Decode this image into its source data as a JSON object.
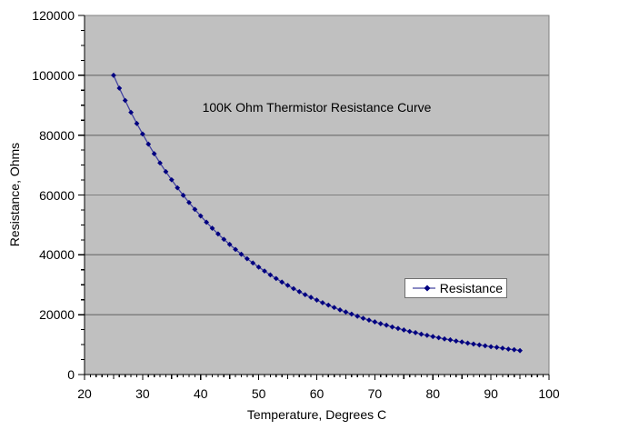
{
  "colors": {
    "background": "#ffffff",
    "plot_bg": "#c0c0c0",
    "plot_border": "#808080",
    "gridline": "#808080",
    "axis": "#000000",
    "text": "#000000",
    "series_marker": "#000080",
    "series_line": "#4444a0",
    "legend_border": "#6e6e6e",
    "legend_bg": "#ffffff"
  },
  "legend": {
    "label": "Resistance"
  },
  "chart_data": {
    "type": "line",
    "title": "100K Ohm Thermistor Resistance Curve",
    "xlabel": "Temperature, Degrees C",
    "ylabel": "Resistance, Ohms",
    "xlim": [
      20,
      100
    ],
    "ylim": [
      0,
      120000
    ],
    "x_major_ticks": [
      20,
      30,
      40,
      50,
      60,
      70,
      80,
      90,
      100
    ],
    "y_major_ticks": [
      0,
      20000,
      40000,
      60000,
      80000,
      100000,
      120000
    ],
    "x_minor_unit": 1,
    "y_minor_unit": 5000,
    "grid": "horizontal-major-only",
    "legend_position": "inside-right",
    "marker": "diamond",
    "series": [
      {
        "name": "Resistance",
        "x": [
          25,
          26,
          27,
          28,
          29,
          30,
          31,
          32,
          33,
          34,
          35,
          36,
          37,
          38,
          39,
          40,
          41,
          42,
          43,
          44,
          45,
          46,
          47,
          48,
          49,
          50,
          51,
          52,
          53,
          54,
          55,
          56,
          57,
          58,
          59,
          60,
          61,
          62,
          63,
          64,
          65,
          66,
          67,
          68,
          69,
          70,
          71,
          72,
          73,
          74,
          75,
          76,
          77,
          78,
          79,
          80,
          81,
          82,
          83,
          84,
          85,
          86,
          87,
          88,
          89,
          90,
          91,
          92,
          93,
          94,
          95
        ],
        "values": [
          100000,
          95700,
          91600,
          87600,
          83900,
          80400,
          77000,
          73800,
          70700,
          67800,
          65100,
          62400,
          59900,
          57500,
          55200,
          53000,
          50900,
          48900,
          47000,
          45200,
          43500,
          41800,
          40200,
          38700,
          37300,
          35900,
          34600,
          33300,
          32100,
          30900,
          29800,
          28700,
          27700,
          26700,
          25800,
          24900,
          24000,
          23200,
          22400,
          21600,
          20900,
          20200,
          19500,
          18800,
          18200,
          17600,
          17000,
          16500,
          15900,
          15400,
          14900,
          14400,
          14000,
          13500,
          13100,
          12700,
          12300,
          11900,
          11600,
          11200,
          10900,
          10500,
          10200,
          9900,
          9600,
          9300,
          9100,
          8800,
          8500,
          8300,
          8000
        ]
      }
    ]
  }
}
